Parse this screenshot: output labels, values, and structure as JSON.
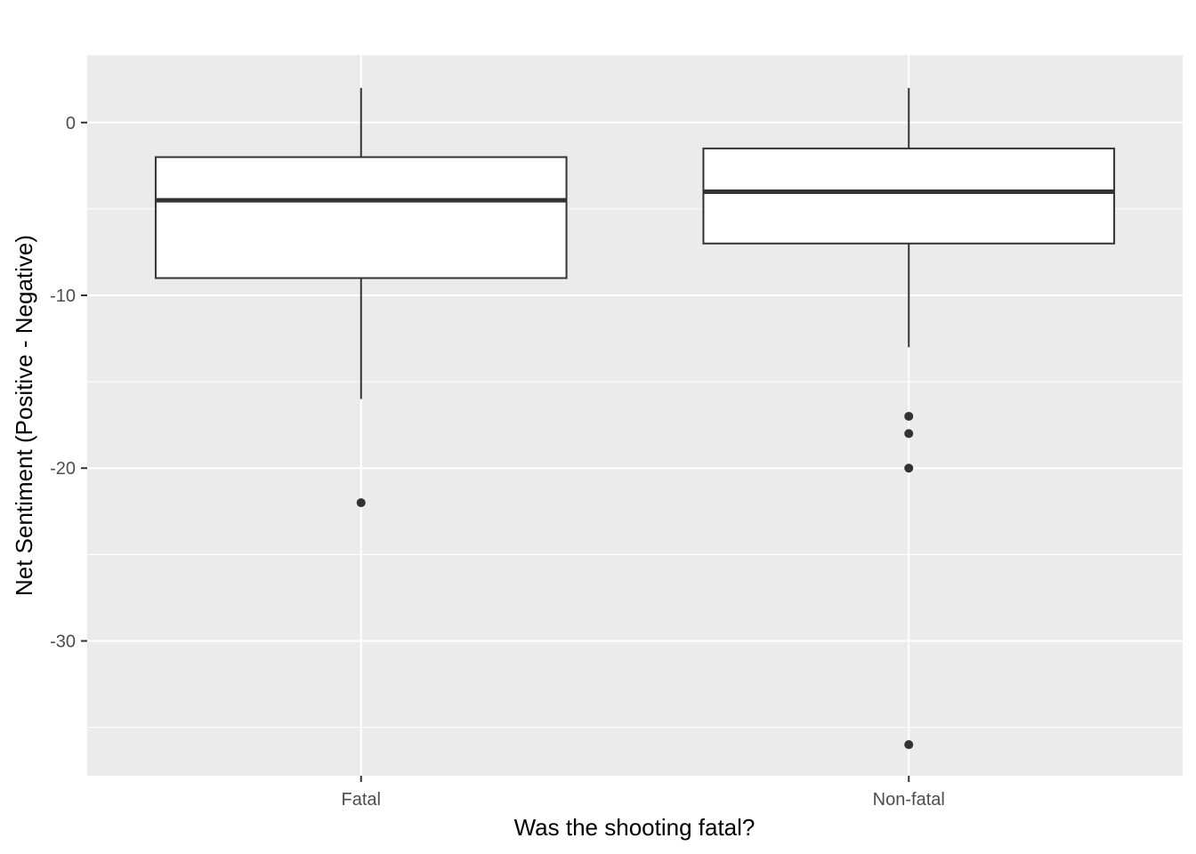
{
  "chart_data": {
    "type": "boxplot",
    "title": "",
    "xlabel": "Was the shooting fatal?",
    "ylabel": "Net Sentiment (Positive - Negative)",
    "categories": [
      "Fatal",
      "Non-fatal"
    ],
    "ylim": [
      -37.8,
      3.9
    ],
    "y_major_ticks": [
      0,
      -10,
      -20,
      -30
    ],
    "y_tick_labels": [
      "0",
      "-10",
      "-20",
      "-30"
    ],
    "y_minor_ticks": [
      -5,
      -15,
      -25,
      -35
    ],
    "grid": true,
    "legend": "none",
    "boxes": [
      {
        "category": "Fatal",
        "whisker_low": -16,
        "q1": -9,
        "median": -4.5,
        "q3": -2,
        "whisker_high": 2,
        "outliers": [
          -22
        ]
      },
      {
        "category": "Non-fatal",
        "whisker_low": -13,
        "q1": -7,
        "median": -4,
        "q3": -1.5,
        "whisker_high": 2,
        "outliers": [
          -17,
          -18,
          -20,
          -36
        ]
      }
    ],
    "colors": {
      "panel": "#ebebeb",
      "grid": "#ffffff",
      "box_fill": "#ffffff",
      "box_stroke": "#333333",
      "outlier": "#333333"
    }
  }
}
